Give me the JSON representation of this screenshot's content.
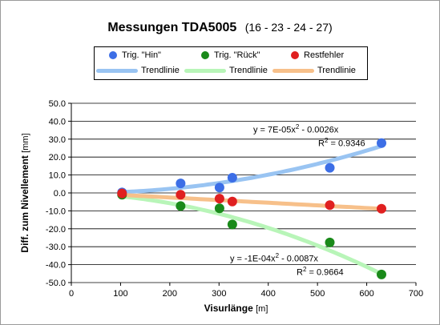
{
  "chart_data": {
    "type": "scatter",
    "title": "Messungen TDA5005",
    "subtitle": "(16 - 23 - 24 - 27)",
    "xlabel": "Visurlänge",
    "xlabel_unit": "[m]",
    "ylabel": "Diff. zum Nivellement",
    "ylabel_unit": "[mm]",
    "xlim": [
      0,
      700
    ],
    "ylim": [
      -50,
      50
    ],
    "xticks": [
      "0",
      "100",
      "200",
      "300",
      "400",
      "500",
      "600",
      "700"
    ],
    "yticks": [
      "50.0",
      "40.0",
      "30.0",
      "20.0",
      "10.0",
      "0.0",
      "-10.0",
      "-20.0",
      "-30.0",
      "-40.0",
      "-50.0"
    ],
    "grid": "horizontal",
    "legend_position": "top",
    "series": [
      {
        "name": "Trig. \"Hin\"",
        "color": "#3c6ee6",
        "points": [
          [
            103,
            0.3
          ],
          [
            222,
            5.3
          ],
          [
            301,
            3.0
          ],
          [
            327,
            8.5
          ],
          [
            525,
            14.0
          ],
          [
            630,
            27.8
          ]
        ]
      },
      {
        "name": "Trig. \"Rück\"",
        "color": "#1a8a1a",
        "points": [
          [
            103,
            -1.0
          ],
          [
            222,
            -7.3
          ],
          [
            301,
            -8.6
          ],
          [
            327,
            -17.6
          ],
          [
            525,
            -27.6
          ],
          [
            630,
            -45.5
          ]
        ]
      },
      {
        "name": "Restfehler",
        "color": "#e02020",
        "points": [
          [
            103,
            -0.3
          ],
          [
            222,
            -1.0
          ],
          [
            301,
            -3.2
          ],
          [
            327,
            -4.8
          ],
          [
            525,
            -6.8
          ],
          [
            630,
            -8.8
          ]
        ]
      }
    ],
    "trendlines": [
      {
        "name": "Trendlinie",
        "color": "#99c4f2",
        "a": 7e-05,
        "b": -0.0026,
        "equation": "y = 7E-05x",
        "equation_tail": " - 0.0026x",
        "r2": "= 0.9346"
      },
      {
        "name": "Trendlinie",
        "color": "#b8f5b8",
        "a": -0.0001,
        "b": -0.0087,
        "equation": "y = -1E-04x",
        "equation_tail": " - 0.0087x",
        "r2": "= 0.9664"
      },
      {
        "name": "Trendlinie",
        "color": "#f7c08a",
        "slope": -0.0147,
        "intercept": 0.4
      }
    ],
    "trend_x_range": [
      103,
      630
    ]
  }
}
